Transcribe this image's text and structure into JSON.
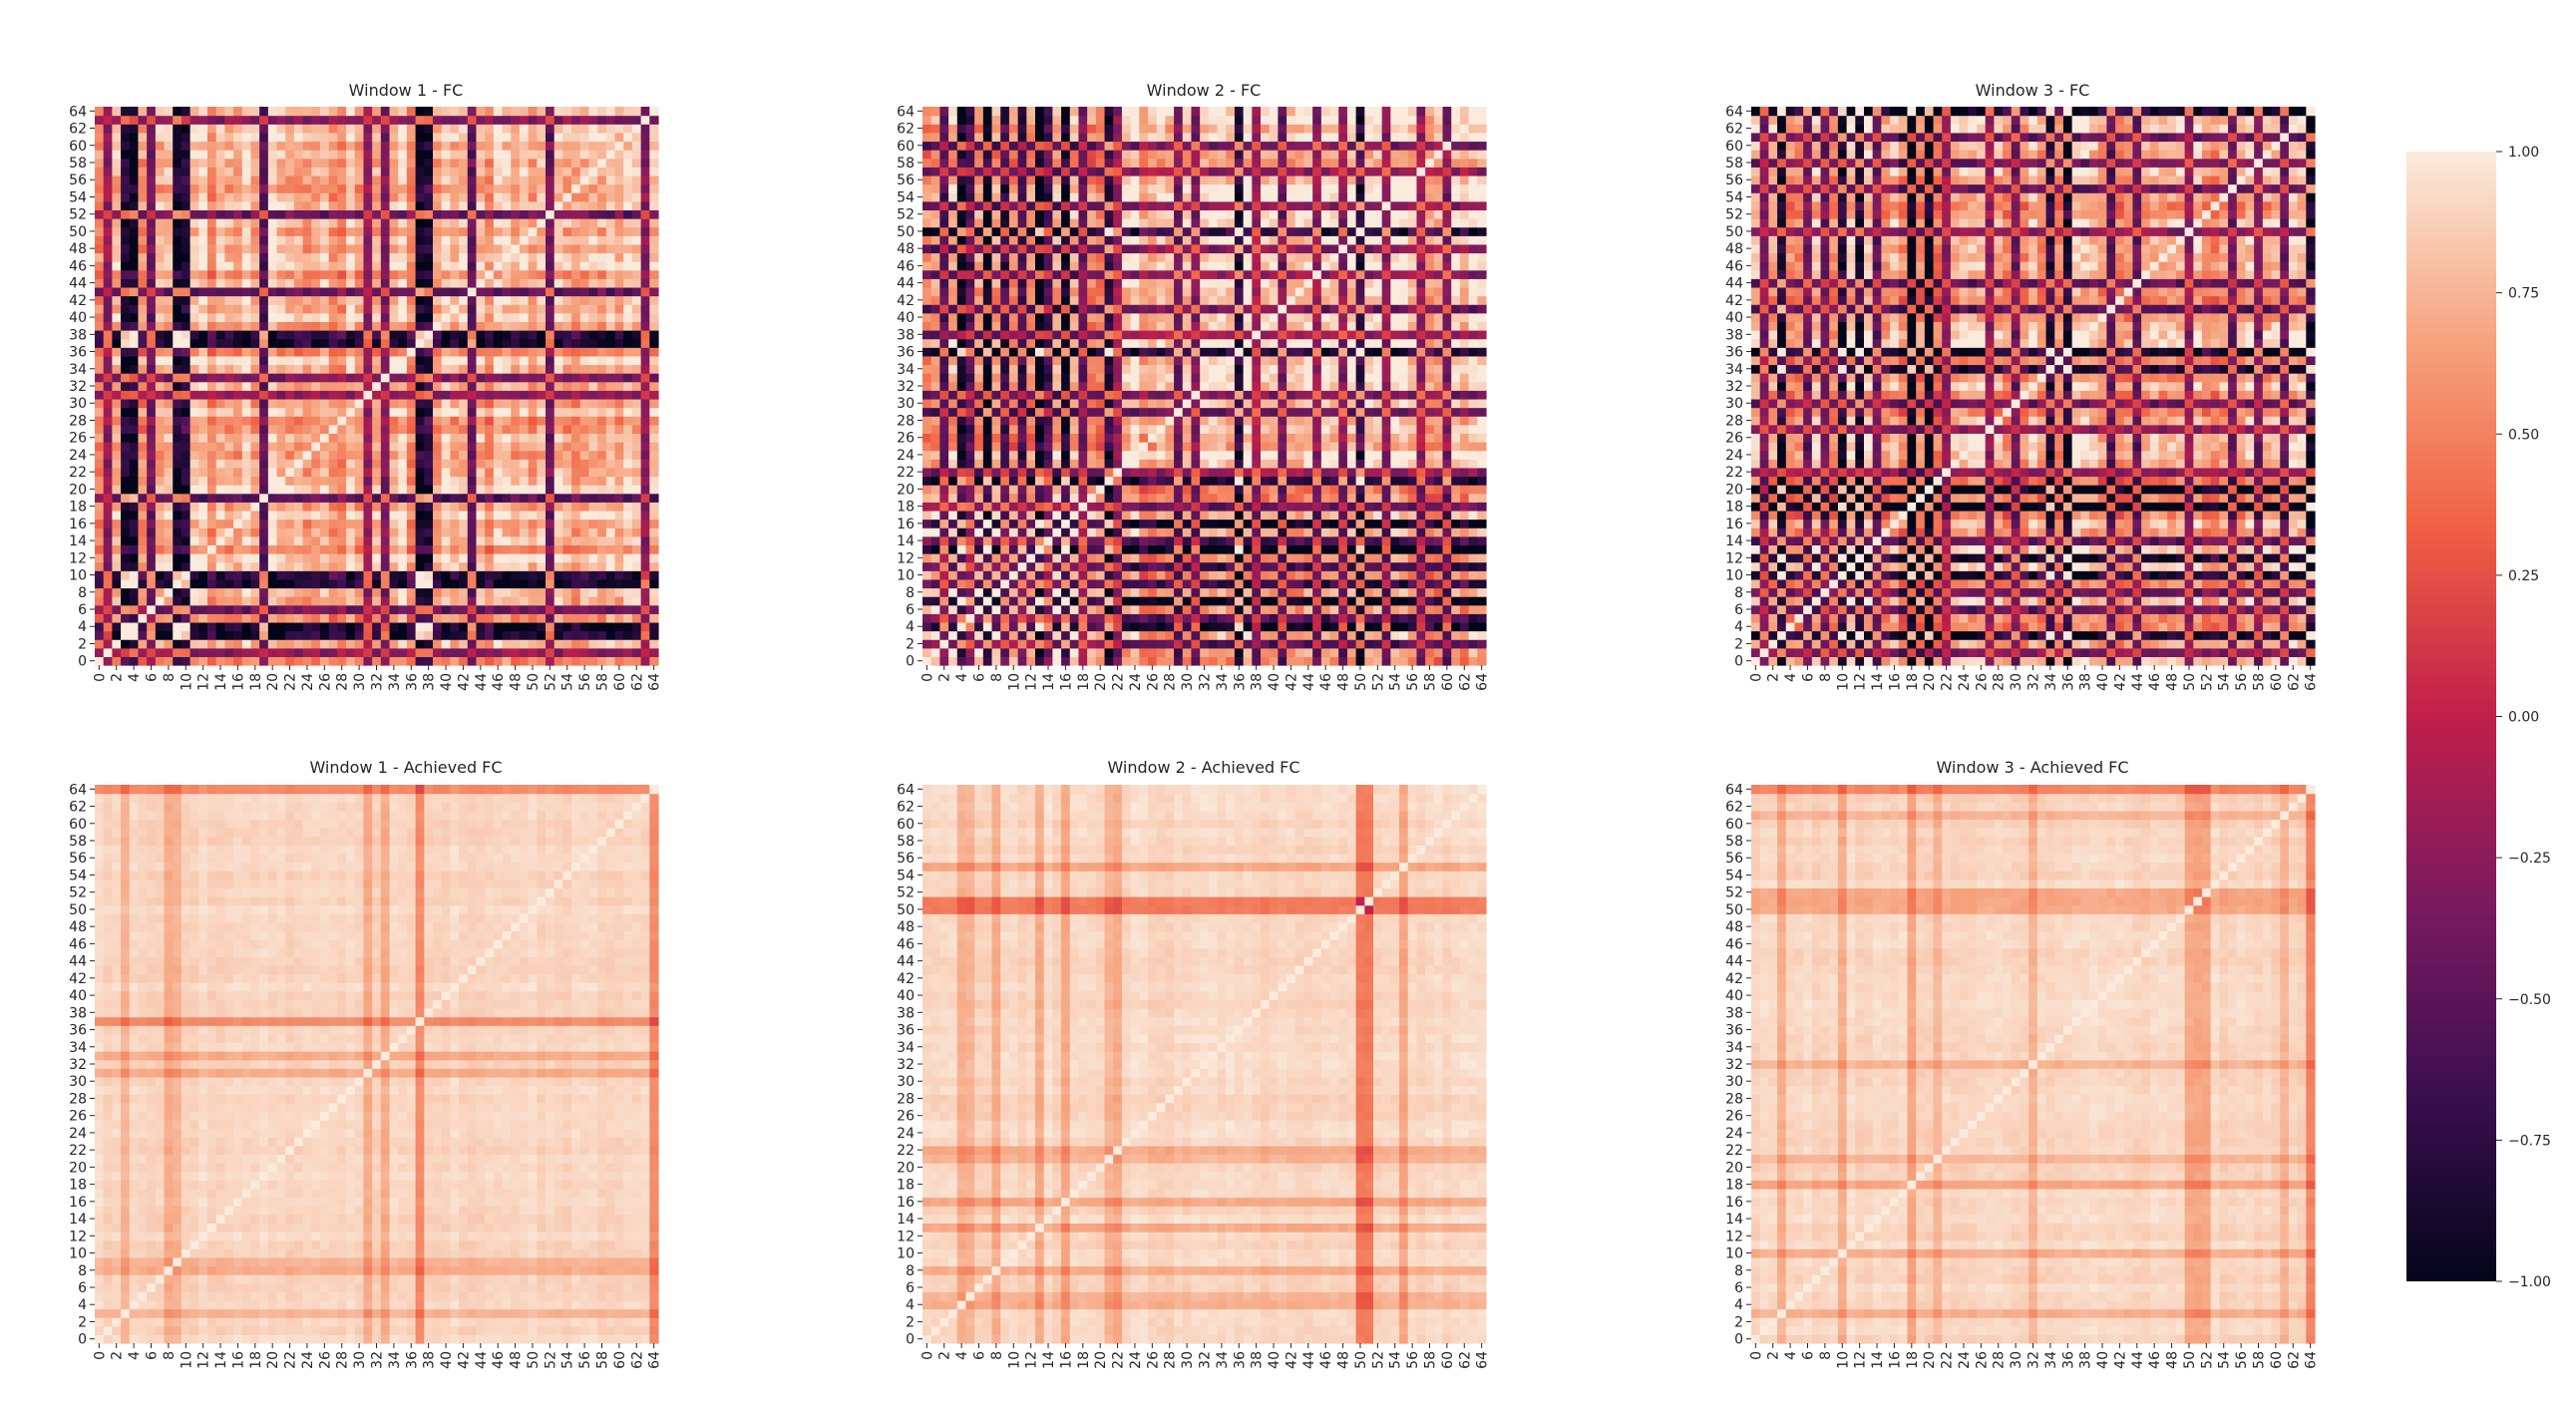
{
  "figure": {
    "panels": [
      {
        "id": "w1_fc",
        "title": "Window 1 - FC"
      },
      {
        "id": "w2_fc",
        "title": "Window 2 - FC"
      },
      {
        "id": "w3_fc",
        "title": "Window 3 - FC"
      },
      {
        "id": "w1_ach",
        "title": "Window 1 - Achieved FC"
      },
      {
        "id": "w2_ach",
        "title": "Window 2 - Achieved FC"
      },
      {
        "id": "w3_ach",
        "title": "Window 3 - Achieved FC"
      }
    ],
    "colorbar": {
      "ticks": [
        "1.00",
        "0.75",
        "0.50",
        "0.25",
        "0.00",
        "−0.25",
        "−0.50",
        "−0.75",
        "−1.00"
      ],
      "tick_values": [
        1.0,
        0.75,
        0.5,
        0.25,
        0.0,
        -0.25,
        -0.5,
        -0.75,
        -1.0
      ],
      "colormap": "rocket",
      "stops": [
        "#03051a",
        "#3b0f4f",
        "#7a1a5f",
        "#c01f4a",
        "#f06043",
        "#f6a37e",
        "#faebdd"
      ]
    }
  },
  "chart_data": [
    {
      "type": "heatmap",
      "title": "Window 1 - FC",
      "size": 65,
      "x_tick_labels": [
        "0",
        "2",
        "4",
        "6",
        "8",
        "10",
        "12",
        "14",
        "16",
        "18",
        "20",
        "22",
        "24",
        "26",
        "28",
        "30",
        "32",
        "34",
        "36",
        "38",
        "40",
        "42",
        "44",
        "46",
        "48",
        "50",
        "52",
        "54",
        "56",
        "58",
        "60",
        "62",
        "64"
      ],
      "y_tick_labels": [
        "0",
        "2",
        "4",
        "6",
        "8",
        "10",
        "12",
        "14",
        "16",
        "18",
        "20",
        "22",
        "24",
        "26",
        "28",
        "30",
        "32",
        "34",
        "36",
        "38",
        "40",
        "42",
        "44",
        "46",
        "48",
        "50",
        "52",
        "54",
        "56",
        "58",
        "60",
        "62",
        "64"
      ],
      "vmin": -1,
      "vmax": 1,
      "strong_negative_nodes": [
        3,
        4,
        9,
        10,
        37,
        38
      ],
      "moderate_negative_nodes": [
        1,
        6,
        19,
        31,
        33,
        43,
        52,
        63
      ]
    },
    {
      "type": "heatmap",
      "title": "Window 2 - FC",
      "size": 65,
      "x_tick_labels": [
        "0",
        "2",
        "4",
        "6",
        "8",
        "10",
        "12",
        "14",
        "16",
        "18",
        "20",
        "22",
        "24",
        "26",
        "28",
        "30",
        "32",
        "34",
        "36",
        "38",
        "40",
        "42",
        "44",
        "46",
        "48",
        "50",
        "52",
        "54",
        "56",
        "58",
        "60",
        "62",
        "64"
      ],
      "y_tick_labels": [
        "0",
        "2",
        "4",
        "6",
        "8",
        "10",
        "12",
        "14",
        "16",
        "18",
        "20",
        "22",
        "24",
        "26",
        "28",
        "30",
        "32",
        "34",
        "36",
        "38",
        "40",
        "42",
        "44",
        "46",
        "48",
        "50",
        "52",
        "54",
        "56",
        "58",
        "60",
        "62",
        "64"
      ],
      "vmin": -1,
      "vmax": 1,
      "strong_negative_nodes": [
        4,
        7,
        13,
        16,
        21,
        36,
        50
      ],
      "moderate_negative_nodes": [
        2,
        5,
        9,
        11,
        14,
        18,
        22,
        29,
        31,
        38,
        41,
        45,
        48,
        53,
        57,
        60
      ]
    },
    {
      "type": "heatmap",
      "title": "Window 3 - FC",
      "size": 65,
      "x_tick_labels": [
        "0",
        "2",
        "4",
        "6",
        "8",
        "10",
        "12",
        "14",
        "16",
        "18",
        "20",
        "22",
        "24",
        "26",
        "28",
        "30",
        "32",
        "34",
        "36",
        "38",
        "40",
        "42",
        "44",
        "46",
        "48",
        "50",
        "52",
        "54",
        "56",
        "58",
        "60",
        "62",
        "64"
      ],
      "y_tick_labels": [
        "0",
        "2",
        "4",
        "6",
        "8",
        "10",
        "12",
        "14",
        "16",
        "18",
        "20",
        "22",
        "24",
        "26",
        "28",
        "30",
        "32",
        "34",
        "36",
        "38",
        "40",
        "42",
        "44",
        "46",
        "48",
        "50",
        "52",
        "54",
        "56",
        "58",
        "60",
        "62",
        "64"
      ],
      "vmin": -1,
      "vmax": 1,
      "strong_negative_nodes": [
        3,
        10,
        12,
        18,
        20,
        34,
        36,
        64
      ],
      "moderate_negative_nodes": [
        1,
        6,
        8,
        14,
        22,
        27,
        30,
        41,
        44,
        50,
        55,
        58,
        61
      ]
    },
    {
      "type": "heatmap",
      "title": "Window 1 - Achieved FC",
      "size": 65,
      "x_tick_labels": [
        "0",
        "2",
        "4",
        "6",
        "8",
        "10",
        "12",
        "14",
        "16",
        "18",
        "20",
        "22",
        "24",
        "26",
        "28",
        "30",
        "32",
        "34",
        "36",
        "38",
        "40",
        "42",
        "44",
        "46",
        "48",
        "50",
        "52",
        "54",
        "56",
        "58",
        "60",
        "62",
        "64"
      ],
      "y_tick_labels": [
        "0",
        "2",
        "4",
        "6",
        "8",
        "10",
        "12",
        "14",
        "16",
        "18",
        "20",
        "22",
        "24",
        "26",
        "28",
        "30",
        "32",
        "34",
        "36",
        "38",
        "40",
        "42",
        "44",
        "46",
        "48",
        "50",
        "52",
        "54",
        "56",
        "58",
        "60",
        "62",
        "64"
      ],
      "vmin": -1,
      "vmax": 1,
      "low_nodes": [
        37,
        64
      ],
      "mild_nodes": [
        3,
        8,
        9,
        31,
        33
      ]
    },
    {
      "type": "heatmap",
      "title": "Window 2 - Achieved FC",
      "size": 65,
      "x_tick_labels": [
        "0",
        "2",
        "4",
        "6",
        "8",
        "10",
        "12",
        "14",
        "16",
        "18",
        "20",
        "22",
        "24",
        "26",
        "28",
        "30",
        "32",
        "34",
        "36",
        "38",
        "40",
        "42",
        "44",
        "46",
        "48",
        "50",
        "52",
        "54",
        "56",
        "58",
        "60",
        "62",
        "64"
      ],
      "y_tick_labels": [
        "0",
        "2",
        "4",
        "6",
        "8",
        "10",
        "12",
        "14",
        "16",
        "18",
        "20",
        "22",
        "24",
        "26",
        "28",
        "30",
        "32",
        "34",
        "36",
        "38",
        "40",
        "42",
        "44",
        "46",
        "48",
        "50",
        "52",
        "54",
        "56",
        "58",
        "60",
        "62",
        "64"
      ],
      "vmin": -1,
      "vmax": 1,
      "low_nodes": [
        50,
        51
      ],
      "mild_nodes": [
        4,
        5,
        8,
        13,
        16,
        21,
        22,
        55
      ]
    },
    {
      "type": "heatmap",
      "title": "Window 3 - Achieved FC",
      "size": 65,
      "x_tick_labels": [
        "0",
        "2",
        "4",
        "6",
        "8",
        "10",
        "12",
        "14",
        "16",
        "18",
        "20",
        "22",
        "24",
        "26",
        "28",
        "30",
        "32",
        "34",
        "36",
        "38",
        "40",
        "42",
        "44",
        "46",
        "48",
        "50",
        "52",
        "54",
        "56",
        "58",
        "60",
        "62",
        "64"
      ],
      "y_tick_labels": [
        "0",
        "2",
        "4",
        "6",
        "8",
        "10",
        "12",
        "14",
        "16",
        "18",
        "20",
        "22",
        "24",
        "26",
        "28",
        "30",
        "32",
        "34",
        "36",
        "38",
        "40",
        "42",
        "44",
        "46",
        "48",
        "50",
        "52",
        "54",
        "56",
        "58",
        "60",
        "62",
        "64"
      ],
      "vmin": -1,
      "vmax": 1,
      "low_nodes": [
        64
      ],
      "mild_nodes": [
        3,
        10,
        18,
        21,
        32,
        50,
        51,
        52,
        61
      ]
    }
  ]
}
